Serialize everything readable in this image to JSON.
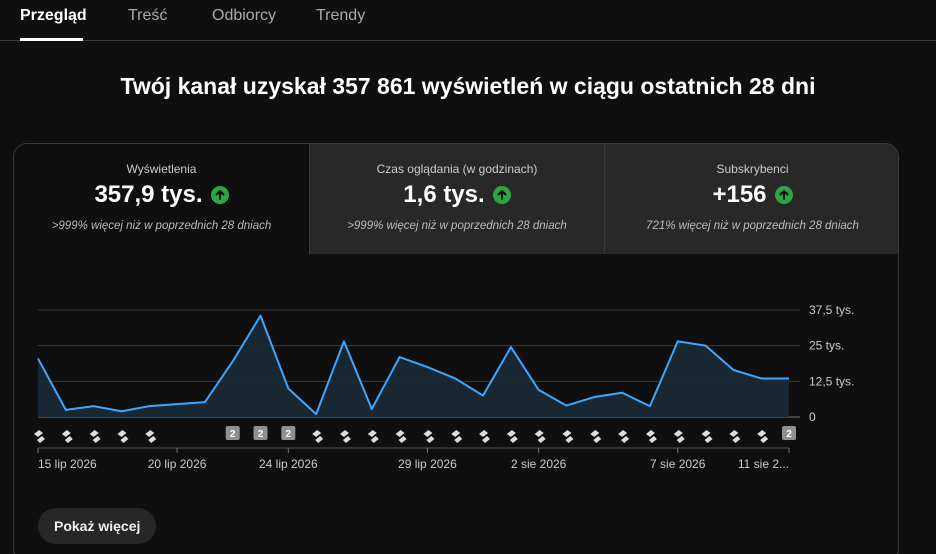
{
  "tabs": [
    {
      "label": "Przegląd",
      "active": true
    },
    {
      "label": "Treść",
      "active": false
    },
    {
      "label": "Odbiorcy",
      "active": false
    },
    {
      "label": "Trendy",
      "active": false
    }
  ],
  "headline": "Twój kanał uzyskał 357 861 wyświetleń w ciągu ostatnich 28 dni",
  "metrics": [
    {
      "label": "Wyświetlenia",
      "value": "357,9 tys.",
      "change": ">999% więcej niż w poprzednich 28 dniach",
      "icon": "arrow-up-icon"
    },
    {
      "label": "Czas oglądania (w godzinach)",
      "value": "1,6 tys.",
      "change": ">999% więcej niż w poprzednich 28 dniach",
      "icon": "arrow-up-icon"
    },
    {
      "label": "Subskrybenci",
      "value": "+156",
      "change": "721% więcej niż w poprzednich 28 dniach",
      "icon": "arrow-up-icon"
    }
  ],
  "colors": {
    "line": "#3ea6ff",
    "up": "#2ba640",
    "marker_badge": "#909090"
  },
  "chart_data": {
    "type": "area",
    "x": [
      "15 lip 2026",
      "16 lip 2026",
      "17 lip 2026",
      "18 lip 2026",
      "19 lip 2026",
      "20 lip 2026",
      "21 lip 2026",
      "22 lip 2026",
      "23 lip 2026",
      "24 lip 2026",
      "25 lip 2026",
      "26 lip 2026",
      "27 lip 2026",
      "28 lip 2026",
      "29 lip 2026",
      "30 lip 2026",
      "31 lip 2026",
      "1 sie 2026",
      "2 sie 2026",
      "3 sie 2026",
      "4 sie 2026",
      "5 sie 2026",
      "6 sie 2026",
      "7 sie 2026",
      "8 sie 2026",
      "9 sie 2026",
      "10 sie 2026",
      "11 sie 2026"
    ],
    "values": [
      20500,
      2500,
      3800,
      2000,
      3800,
      4500,
      5200,
      19500,
      35500,
      10000,
      1000,
      26500,
      2800,
      21000,
      17500,
      13500,
      7500,
      24500,
      9500,
      4000,
      7000,
      8500,
      3800,
      26500,
      25000,
      16500,
      13500,
      13500
    ],
    "ylim": [
      0,
      37500
    ],
    "yticks": [
      "0",
      "12,5 tys.",
      "25 tys.",
      "37,5 tys."
    ],
    "ytick_values": [
      0,
      12500,
      25000,
      37500
    ],
    "xtick_labels": [
      {
        "index": 0,
        "label": "15 lip 2026"
      },
      {
        "index": 5,
        "label": "20 lip 2026"
      },
      {
        "index": 9,
        "label": "24 lip 2026"
      },
      {
        "index": 14,
        "label": "29 lip 2026"
      },
      {
        "index": 18,
        "label": "2 sie 2026"
      },
      {
        "index": 23,
        "label": "7 sie 2026"
      },
      {
        "index": 27,
        "label": "11 sie 2..."
      }
    ],
    "markers": [
      "short",
      "short",
      "short",
      "short",
      "short",
      "",
      "",
      "2",
      "2",
      "2",
      "short",
      "short",
      "short",
      "short",
      "short",
      "short",
      "short",
      "short",
      "short",
      "short",
      "short",
      "short",
      "short",
      "short",
      "short",
      "short",
      "short",
      "2"
    ],
    "grid": true
  },
  "show_more_label": "Pokaż więcej"
}
